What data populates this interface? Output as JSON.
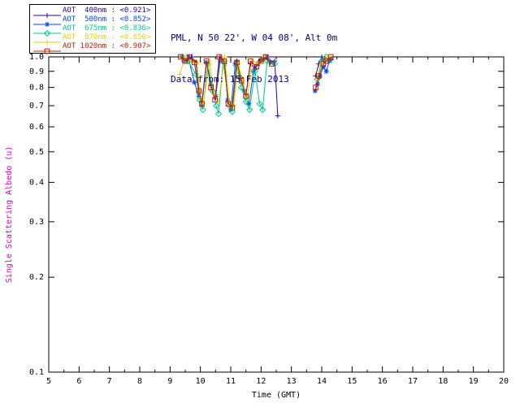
{
  "header": {
    "site_line": "PML, N 50 22', W 04 08', Alt 0m",
    "date_line": "Data from: 15 Feb 2013",
    "color": "#000080"
  },
  "legend": {
    "entries": [
      {
        "label": "AOT  400nm : <0.921>",
        "color": "#31009e",
        "marker": "plus"
      },
      {
        "label": "AOT  500nm : <0.852>",
        "color": "#0044ff",
        "marker": "asterisk"
      },
      {
        "label": "AOT  675nm : <0.836>",
        "color": "#00cc88",
        "marker": "diamond"
      },
      {
        "label": "AOT  870nm : <0.850>",
        "color": "#e3d400",
        "marker": "plus"
      },
      {
        "label": "AOT 1020nm : <0.907>",
        "color": "#bb2200",
        "marker": "square"
      }
    ]
  },
  "chart_data": {
    "type": "line",
    "title": "",
    "xlabel": "Time (GMT)",
    "ylabel": "Single Scattering Albedo (u)",
    "ylabel_color": "#dd00cc",
    "axis_color": "#000000",
    "x_range": [
      5,
      20
    ],
    "x_tick_step": 1,
    "y_scale": "log",
    "y_range": [
      0.1,
      1.0
    ],
    "y_ticks": [
      1.0,
      0.9,
      0.8,
      0.7,
      0.6,
      0.5,
      0.4,
      0.3,
      0.2,
      0.1
    ],
    "grid": false,
    "legend_position": "top-left",
    "series": [
      {
        "name": "AOT 400nm",
        "color": "#31009e",
        "marker": "plus",
        "points": [
          [
            9.4,
            1.0
          ],
          [
            9.55,
            0.97
          ],
          [
            9.7,
            1.0
          ],
          [
            9.85,
            0.96
          ],
          [
            9.95,
            0.78
          ],
          [
            10.05,
            0.72
          ],
          [
            10.2,
            0.96
          ],
          [
            10.35,
            0.81
          ],
          [
            10.5,
            0.74
          ],
          [
            10.65,
            1.0
          ],
          [
            10.8,
            0.97
          ],
          [
            10.9,
            0.72
          ],
          [
            11.05,
            0.7
          ],
          [
            11.2,
            0.97
          ],
          [
            11.35,
            0.86
          ],
          [
            11.5,
            0.76
          ],
          [
            11.65,
            0.95
          ],
          [
            11.8,
            0.92
          ],
          [
            11.95,
            0.97
          ],
          [
            12.1,
            1.0
          ],
          [
            12.3,
            0.96
          ],
          [
            12.45,
            0.97
          ],
          [
            12.55,
            0.65
          ],
          [
            13.8,
            0.87
          ],
          [
            13.9,
            0.95
          ],
          [
            14.0,
            1.0
          ],
          [
            14.1,
            0.97
          ],
          [
            14.2,
            1.0
          ],
          [
            14.3,
            0.98
          ]
        ]
      },
      {
        "name": "AOT 500nm",
        "color": "#0044ff",
        "marker": "asterisk",
        "points": [
          [
            9.45,
            0.97
          ],
          [
            9.6,
            1.0
          ],
          [
            9.8,
            0.83
          ],
          [
            9.95,
            0.75
          ],
          [
            10.05,
            0.7
          ],
          [
            10.2,
            0.96
          ],
          [
            10.35,
            0.82
          ],
          [
            10.5,
            0.75
          ],
          [
            10.65,
            0.97
          ],
          [
            10.8,
            0.95
          ],
          [
            10.9,
            0.73
          ],
          [
            11.0,
            0.68
          ],
          [
            11.15,
            0.95
          ],
          [
            11.3,
            0.86
          ],
          [
            11.45,
            0.78
          ],
          [
            11.6,
            0.71
          ],
          [
            11.75,
            0.9
          ],
          [
            11.9,
            0.95
          ],
          [
            12.05,
            0.98
          ],
          [
            12.2,
            1.0
          ],
          [
            12.4,
            0.96
          ],
          [
            13.78,
            0.78
          ],
          [
            13.86,
            0.82
          ],
          [
            13.94,
            0.87
          ],
          [
            14.05,
            0.93
          ],
          [
            14.15,
            0.9
          ],
          [
            14.25,
            0.97
          ]
        ]
      },
      {
        "name": "AOT 675nm",
        "color": "#00cc88",
        "marker": "diamond",
        "points": [
          [
            9.4,
            1.0
          ],
          [
            9.6,
            0.97
          ],
          [
            9.85,
            0.88
          ],
          [
            9.98,
            0.73
          ],
          [
            10.08,
            0.68
          ],
          [
            10.25,
            0.95
          ],
          [
            10.4,
            0.78
          ],
          [
            10.52,
            0.7
          ],
          [
            10.6,
            0.66
          ],
          [
            10.75,
            0.97
          ],
          [
            10.95,
            0.7
          ],
          [
            11.05,
            0.67
          ],
          [
            11.2,
            0.93
          ],
          [
            11.35,
            0.8
          ],
          [
            11.5,
            0.72
          ],
          [
            11.62,
            0.68
          ],
          [
            11.8,
            0.9
          ],
          [
            11.95,
            0.71
          ],
          [
            12.05,
            0.68
          ],
          [
            12.2,
            0.97
          ],
          [
            12.45,
            0.95
          ],
          [
            13.85,
            0.85
          ],
          [
            14.0,
            0.97
          ],
          [
            14.15,
            1.0
          ],
          [
            14.3,
            0.98
          ]
        ]
      },
      {
        "name": "AOT 870nm",
        "color": "#e3d400",
        "marker": "plus",
        "points": [
          [
            9.32,
            0.88
          ],
          [
            9.5,
            1.0
          ],
          [
            9.7,
            0.97
          ],
          [
            9.9,
            0.95
          ],
          [
            10.0,
            0.74
          ],
          [
            10.1,
            0.71
          ],
          [
            10.3,
            0.97
          ],
          [
            10.45,
            0.76
          ],
          [
            10.6,
            0.72
          ],
          [
            10.8,
            1.0
          ],
          [
            10.95,
            0.72
          ],
          [
            11.1,
            0.7
          ],
          [
            11.25,
            0.95
          ],
          [
            11.4,
            0.82
          ],
          [
            11.55,
            0.74
          ],
          [
            11.7,
            0.97
          ],
          [
            11.9,
            0.95
          ],
          [
            12.1,
            1.0
          ],
          [
            13.85,
            0.84
          ],
          [
            14.0,
            0.95
          ],
          [
            14.2,
            1.0
          ]
        ]
      },
      {
        "name": "AOT 1020nm",
        "color": "#bb2200",
        "marker": "square",
        "points": [
          [
            9.35,
            1.0
          ],
          [
            9.5,
            0.97
          ],
          [
            9.65,
            1.0
          ],
          [
            9.8,
            0.96
          ],
          [
            9.95,
            0.78
          ],
          [
            10.05,
            0.71
          ],
          [
            10.2,
            0.97
          ],
          [
            10.35,
            0.8
          ],
          [
            10.48,
            0.73
          ],
          [
            10.62,
            1.0
          ],
          [
            10.78,
            0.97
          ],
          [
            10.92,
            0.71
          ],
          [
            11.05,
            0.69
          ],
          [
            11.2,
            0.96
          ],
          [
            11.35,
            0.84
          ],
          [
            11.5,
            0.75
          ],
          [
            11.65,
            0.97
          ],
          [
            11.85,
            0.93
          ],
          [
            12.0,
            0.97
          ],
          [
            12.15,
            1.0
          ],
          [
            12.35,
            0.95
          ],
          [
            13.8,
            0.8
          ],
          [
            13.9,
            0.87
          ],
          [
            14.05,
            0.95
          ],
          [
            14.15,
            0.97
          ],
          [
            14.3,
            1.0
          ]
        ]
      }
    ]
  }
}
